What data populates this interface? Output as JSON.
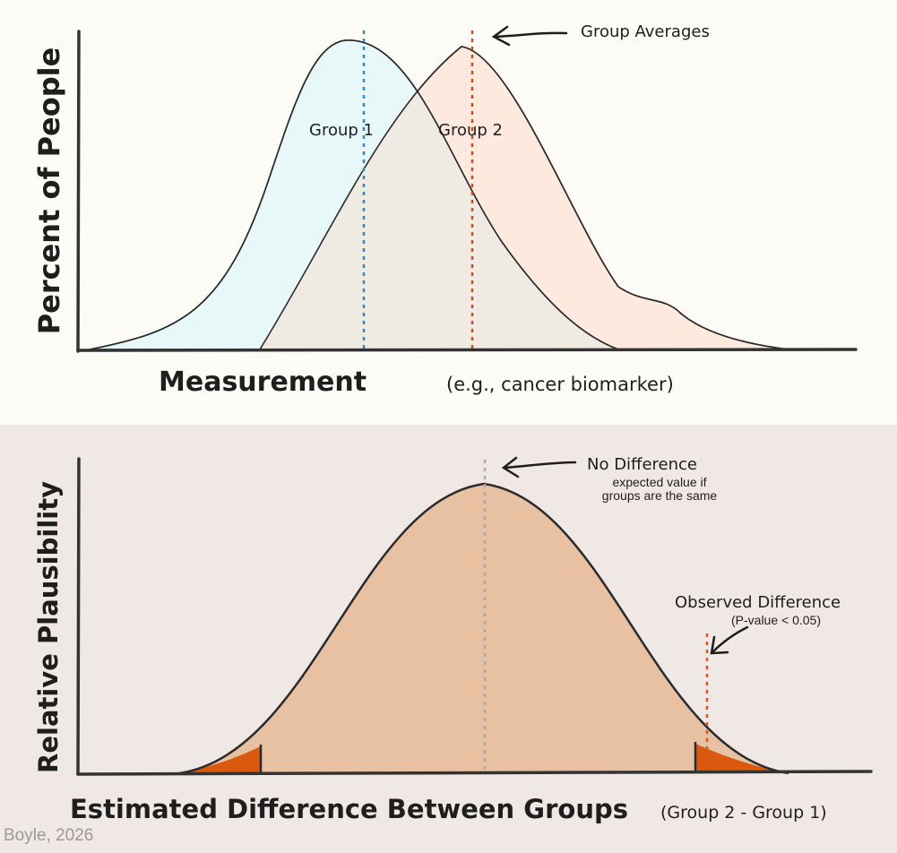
{
  "colors": {
    "background_top": "#fcfbf5",
    "background_bottom": "#f0e8e4",
    "group1_fill": "#e8f8f8",
    "group2_fill": "#fde9dd",
    "overlap_fill": "#efebe2",
    "group1_mean_line": "#3a86c0",
    "group2_mean_line": "#c94a28",
    "null_fill": "#e8c0a2",
    "tail_fill": "#d9590f",
    "null_mean_line": "#aaaaaa",
    "observed_line": "#d9590f",
    "outline": "#2b2b2b",
    "credit": "#9a9a9a"
  },
  "top": {
    "ylabel": "Percent of People",
    "xlabel_main": "Measurement",
    "xlabel_note": "(e.g., cancer biomarker)",
    "group1_label": "Group 1",
    "group2_label": "Group 2",
    "averages_label": "Group Averages"
  },
  "bottom": {
    "ylabel": "Relative Plausibility",
    "xlabel_main": "Estimated Difference Between Groups",
    "xlabel_note": "(Group 2 - Group 1)",
    "null_label": "No Difference",
    "null_sub1": "expected value if",
    "null_sub2": "groups are the same",
    "observed_label": "Observed Difference",
    "observed_sub": "(P-value < 0.05)"
  },
  "credit": "Boyle, 2026"
}
